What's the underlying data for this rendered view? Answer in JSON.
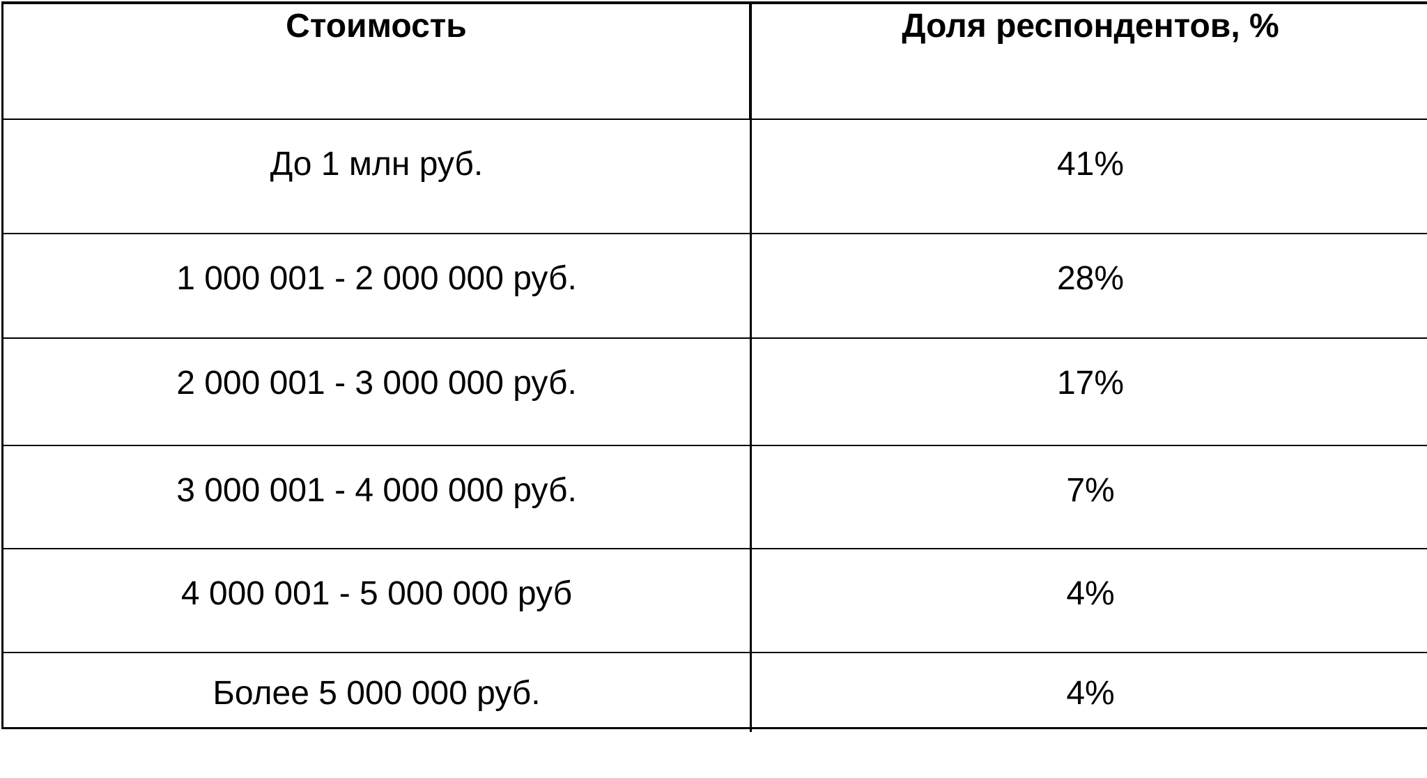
{
  "table": {
    "headers": {
      "cost": "Стоимость",
      "share": "Доля респондентов, %"
    },
    "rows": [
      {
        "cost": "До 1 млн руб.",
        "share": "41%"
      },
      {
        "cost": "1 000 001 - 2 000 000 руб.",
        "share": "28%"
      },
      {
        "cost": "2 000 001 - 3 000 000 руб.",
        "share": "17%"
      },
      {
        "cost": "3 000 001 - 4 000 000 руб.",
        "share": "7%"
      },
      {
        "cost": "4 000 001 - 5 000 000 руб",
        "share": "4%"
      },
      {
        "cost": "Более 5 000 000 руб.",
        "share": "4%"
      }
    ]
  }
}
